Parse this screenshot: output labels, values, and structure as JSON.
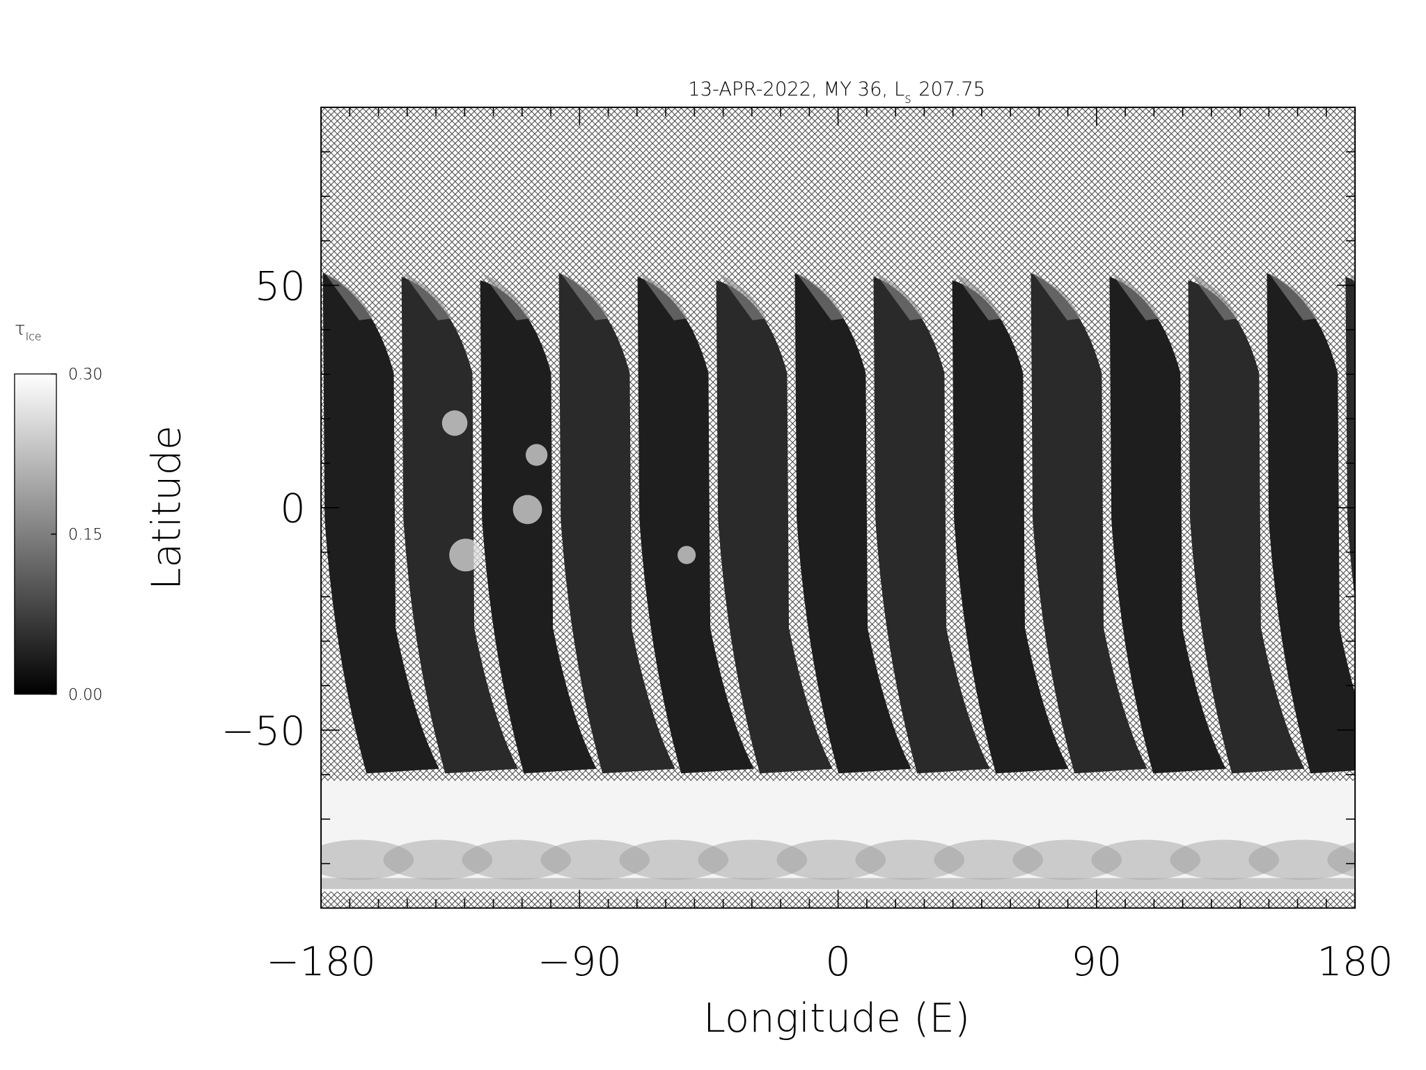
{
  "chart_data": {
    "type": "map",
    "title": "13-APR-2022, MY 36,  L",
    "title_subscript": "s",
    "title_suffix": "207.75",
    "xlabel": "Longitude (E)",
    "ylabel": "Latitude",
    "xlim": [
      -180,
      180
    ],
    "xticks": [
      {
        "value": -180,
        "label": "−180"
      },
      {
        "value": -90,
        "label": "−90"
      },
      0,
      90,
      180
    ],
    "xminorticks": [
      -170,
      -160,
      -150,
      -140,
      -130,
      -120,
      -110,
      -100,
      -80,
      -70,
      -60,
      -50,
      -40,
      -30,
      -20,
      -10,
      10,
      20,
      30,
      40,
      50,
      60,
      70,
      80,
      100,
      110,
      120,
      130,
      140,
      150,
      160,
      170
    ],
    "ylim": [
      -90,
      90
    ],
    "yticks": [
      {
        "value": -50,
        "label": "−50"
      },
      0,
      50
    ],
    "yminorticks": [
      -80,
      -70,
      -60,
      -40,
      -30,
      -20,
      -10,
      10,
      20,
      30,
      40,
      60,
      70,
      80
    ],
    "colorbar": {
      "label": "τ",
      "label_subscript": "Ice",
      "lim": [
        0,
        0.3
      ],
      "ticks": [
        {
          "value": 0,
          "label": "0.00"
        },
        {
          "value": 0.15,
          "label": "0.15"
        },
        {
          "value": 0.3,
          "label": "0.30"
        }
      ]
    }
  }
}
